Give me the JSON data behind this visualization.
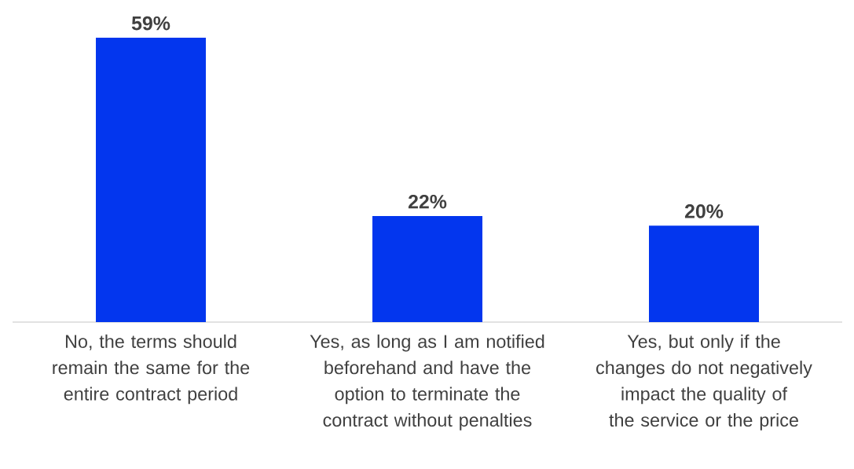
{
  "chart_data": {
    "type": "bar",
    "categories": [
      "No, the terms should remain the same for the entire contract period",
      "Yes, as long as I am notified beforehand and have the option to terminate the contract without penalties",
      "Yes, but only if the changes do not negatively impact the quality of the service or the price"
    ],
    "values": [
      59,
      22,
      20
    ],
    "value_labels": [
      "59%",
      "22%",
      "20%"
    ],
    "color": "#0336ee",
    "tick_labels": "x",
    "grid": false
  }
}
